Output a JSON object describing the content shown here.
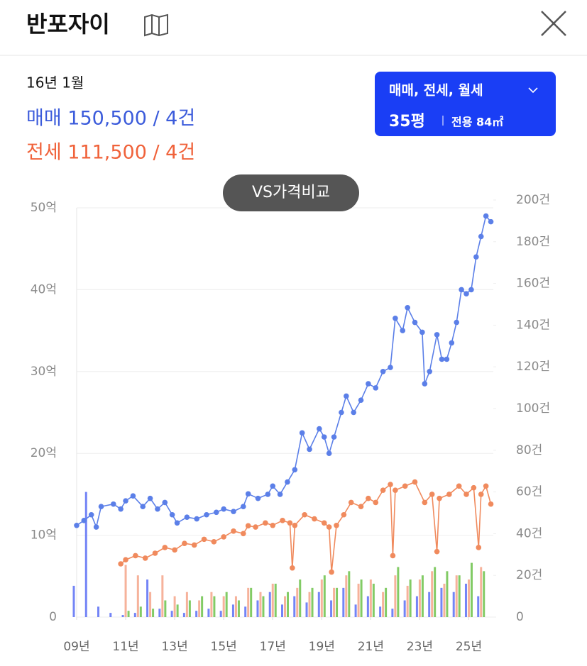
{
  "header": {
    "title": "반포자이"
  },
  "info": {
    "date": "16년 1월",
    "sale": "매매 150,500 / 4건",
    "jeonse": "전세 111,500 / 4건"
  },
  "filter": {
    "label": "매매, 전세, 월세",
    "size": "35평",
    "area": "전용 84㎡"
  },
  "compare_button": "VS가격비교",
  "chart_data": {
    "type": "line",
    "xlim": [
      2009,
      2026
    ],
    "xticks": [
      {
        "value": 2009,
        "label": "09년"
      },
      {
        "value": 2011,
        "label": "11년"
      },
      {
        "value": 2013,
        "label": "13년"
      },
      {
        "value": 2015,
        "label": "15년"
      },
      {
        "value": 2017,
        "label": "17년"
      },
      {
        "value": 2019,
        "label": "19년"
      },
      {
        "value": 2021,
        "label": "21년"
      },
      {
        "value": 2023,
        "label": "23년"
      },
      {
        "value": 2025,
        "label": "25년"
      }
    ],
    "ylim": [
      0,
      50
    ],
    "yticks": [
      0,
      {
        "value": 10,
        "label": "10억"
      },
      {
        "value": 20,
        "label": "20억"
      },
      {
        "value": 30,
        "label": "30억"
      },
      {
        "value": 40,
        "label": "40억"
      },
      {
        "value": 50,
        "label": "50억"
      }
    ],
    "y2lim": [
      0,
      200
    ],
    "y2ticks": [
      0,
      {
        "value": 20,
        "label": "20건"
      },
      {
        "value": 40,
        "label": "40건"
      },
      {
        "value": 60,
        "label": "60건"
      },
      {
        "value": 80,
        "label": "80건"
      },
      {
        "value": 100,
        "label": "100건"
      },
      {
        "value": 120,
        "label": "120건"
      },
      {
        "value": 140,
        "label": "140건"
      },
      {
        "value": 160,
        "label": "160건"
      },
      {
        "value": 180,
        "label": "180건"
      },
      {
        "value": 200,
        "label": "200건"
      }
    ],
    "grid": true,
    "series": [
      {
        "type": "bar",
        "axis": "y2",
        "color": "#5b6ff5",
        "x": [
          2009,
          2009.5,
          2010,
          2010.5,
          2011,
          2011.5,
          2012,
          2012.5,
          2013,
          2013.5,
          2014,
          2014.5,
          2015,
          2015.5,
          2016,
          2016.5,
          2017,
          2017.5,
          2018,
          2018.5,
          2019,
          2019.5,
          2020,
          2020.5,
          2021,
          2021.5,
          2022,
          2022.5,
          2023,
          2023.5,
          2024,
          2024.5,
          2025,
          2025.5
        ],
        "values": [
          15,
          60,
          5,
          2,
          1,
          2,
          18,
          4,
          3,
          2,
          3,
          4,
          3,
          6,
          5,
          8,
          12,
          6,
          10,
          7,
          12,
          8,
          14,
          6,
          10,
          5,
          4,
          8,
          10,
          12,
          14,
          12,
          16,
          10
        ]
      },
      {
        "type": "bar",
        "axis": "y2",
        "color": "#f4a58a",
        "x": [
          2009,
          2009.5,
          2010,
          2010.5,
          2011,
          2011.5,
          2012,
          2012.5,
          2013,
          2013.5,
          2014,
          2014.5,
          2015,
          2015.5,
          2016,
          2016.5,
          2017,
          2017.5,
          2018,
          2018.5,
          2019,
          2019.5,
          2020,
          2020.5,
          2021,
          2021.5,
          2022,
          2022.5,
          2023,
          2023.5,
          2024,
          2024.5,
          2025,
          2025.5
        ],
        "values": [
          0,
          0,
          0,
          0,
          25,
          20,
          12,
          20,
          10,
          12,
          8,
          12,
          10,
          10,
          14,
          12,
          16,
          10,
          14,
          12,
          18,
          14,
          20,
          16,
          18,
          12,
          20,
          15,
          18,
          22,
          16,
          20,
          18,
          24
        ]
      },
      {
        "type": "bar",
        "axis": "y2",
        "color": "#6cc24a",
        "x": [
          2009,
          2009.5,
          2010,
          2010.5,
          2011,
          2011.5,
          2012,
          2012.5,
          2013,
          2013.5,
          2014,
          2014.5,
          2015,
          2015.5,
          2016,
          2016.5,
          2017,
          2017.5,
          2018,
          2018.5,
          2019,
          2019.5,
          2020,
          2020.5,
          2021,
          2021.5,
          2022,
          2022.5,
          2023,
          2023.5,
          2024,
          2024.5,
          2025,
          2025.5
        ],
        "values": [
          0,
          0,
          0,
          0,
          3,
          5,
          4,
          8,
          6,
          8,
          10,
          10,
          12,
          8,
          14,
          10,
          16,
          12,
          18,
          14,
          20,
          14,
          22,
          18,
          16,
          14,
          24,
          18,
          20,
          24,
          22,
          20,
          26,
          22
        ]
      },
      {
        "type": "line",
        "color": "#5b7fe8",
        "x": [
          2009.0,
          2009.3,
          2009.6,
          2009.8,
          2010.0,
          2010.5,
          2010.8,
          2011.0,
          2011.3,
          2011.7,
          2012.0,
          2012.3,
          2012.6,
          2012.9,
          2013.1,
          2013.5,
          2013.9,
          2014.3,
          2014.7,
          2015.0,
          2015.4,
          2015.8,
          2016.0,
          2016.4,
          2016.8,
          2017.0,
          2017.3,
          2017.6,
          2017.9,
          2018.2,
          2018.5,
          2018.9,
          2019.1,
          2019.3,
          2019.5,
          2019.8,
          2020.0,
          2020.3,
          2020.6,
          2020.9,
          2021.2,
          2021.5,
          2021.8,
          2022.0,
          2022.3,
          2022.5,
          2022.8,
          2023.1,
          2023.2,
          2023.4,
          2023.7,
          2023.9,
          2024.1,
          2024.3,
          2024.5,
          2024.7,
          2024.9,
          2025.1,
          2025.3,
          2025.5,
          2025.7,
          2025.9
        ],
        "values": [
          11.2,
          11.8,
          12.5,
          11.0,
          13.5,
          13.8,
          13.2,
          14.2,
          14.8,
          13.5,
          14.5,
          13.2,
          14.0,
          12.5,
          11.5,
          12.2,
          12.0,
          12.5,
          12.8,
          13.2,
          12.9,
          13.5,
          15.05,
          14.5,
          15.0,
          16.0,
          15.0,
          16.5,
          18.0,
          22.5,
          20.5,
          23.0,
          22.0,
          20.0,
          22.0,
          25.0,
          27.0,
          25.0,
          26.5,
          28.5,
          28.0,
          30.0,
          30.5,
          36.5,
          35.0,
          37.8,
          36.0,
          34.8,
          28.5,
          30.0,
          34.5,
          31.5,
          31.5,
          33.5,
          36.0,
          40.0,
          39.5,
          40.0,
          44.0,
          46.5,
          49.0,
          48.3
        ]
      },
      {
        "type": "line",
        "color": "#f08a5d",
        "x": [
          2010.8,
          2011.0,
          2011.4,
          2011.8,
          2012.2,
          2012.6,
          2013.0,
          2013.4,
          2013.8,
          2014.2,
          2014.6,
          2015.0,
          2015.4,
          2015.8,
          2016.0,
          2016.3,
          2016.7,
          2017.0,
          2017.4,
          2017.7,
          2017.8,
          2017.9,
          2018.3,
          2018.7,
          2019.1,
          2019.3,
          2019.4,
          2019.6,
          2019.9,
          2020.2,
          2020.6,
          2020.9,
          2021.2,
          2021.5,
          2021.8,
          2021.9,
          2022.0,
          2022.4,
          2022.8,
          2023.2,
          2023.5,
          2023.7,
          2023.8,
          2024.2,
          2024.6,
          2024.9,
          2025.2,
          2025.4,
          2025.5,
          2025.7,
          2025.9
        ],
        "values": [
          6.5,
          7.0,
          7.5,
          7.2,
          7.8,
          8.5,
          8.2,
          9.0,
          8.8,
          9.5,
          9.2,
          9.8,
          10.5,
          10.2,
          11.15,
          11.0,
          11.5,
          11.2,
          11.8,
          11.5,
          6.0,
          11.2,
          12.5,
          12.0,
          11.5,
          11.0,
          5.5,
          11.2,
          12.5,
          14.0,
          13.5,
          14.5,
          14.0,
          15.5,
          16.2,
          7.5,
          15.5,
          16.0,
          16.5,
          14.0,
          15.0,
          8.0,
          14.5,
          15.0,
          16.0,
          15.0,
          15.8,
          8.5,
          15.0,
          16.0,
          13.8
        ]
      }
    ]
  }
}
